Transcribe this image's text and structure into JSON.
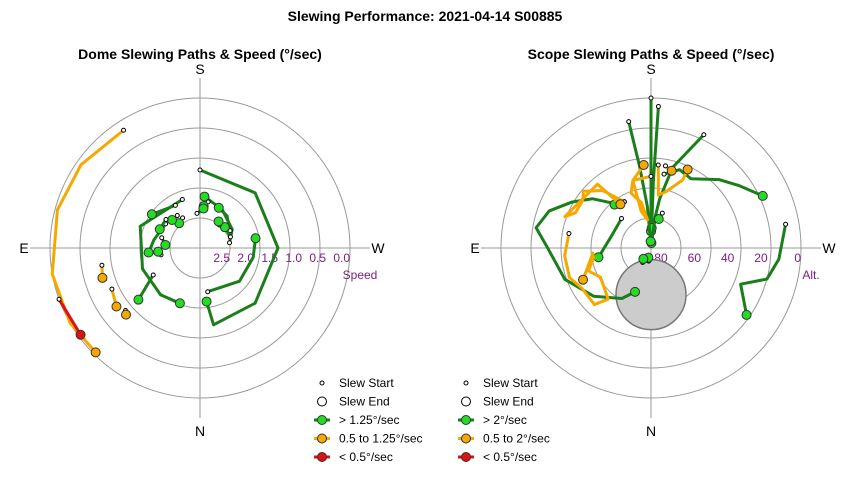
{
  "page_title": "Slewing Performance: 2021-04-14 S00885",
  "colors": {
    "fast": "#1a7f1a",
    "fast_marker": "#22dd22",
    "medium": "#f5a800",
    "medium_marker": "#f5a800",
    "slow": "#dd1111",
    "slow_marker": "#dd1111",
    "grid": "#999999",
    "tick_label": "#7a1f84",
    "blocked_zone": "#cccccc"
  },
  "chart_data": [
    {
      "type": "polar-paths",
      "title": "Dome Slewing Paths & Speed (°/sec)",
      "directions": {
        "top": "S",
        "bottom": "N",
        "left": "E",
        "right": "W"
      },
      "radial_axis": {
        "label": "Speed",
        "ticks": [
          "2.5",
          "2.0",
          "1.5",
          "1.0",
          "0.5",
          "0.0"
        ],
        "values": [
          2.5,
          2.0,
          1.5,
          1.0,
          0.5,
          0.0
        ]
      },
      "grid": true,
      "legend": [
        {
          "kind": "start",
          "label": "Slew Start"
        },
        {
          "kind": "end",
          "label": "Slew End"
        },
        {
          "kind": "fast",
          "label": "> 1.25°/sec"
        },
        {
          "kind": "medium",
          "label": "0.5 to 1.25°/sec"
        },
        {
          "kind": "slow",
          "label": "< 0.5°/sec"
        }
      ],
      "paths": [
        {
          "speed": "fast",
          "pts": [
            [
              0,
              1.5
            ],
            [
              -45,
              1.5
            ],
            [
              -90,
              1.5
            ],
            [
              -135,
              1.5
            ],
            [
              -170,
              1.5
            ],
            [
              -173,
              2.0
            ]
          ]
        },
        {
          "speed": "fast",
          "pts": [
            [
              20,
              2.05
            ],
            [
              70,
              1.8
            ],
            [
              110,
              1.85
            ],
            [
              140,
              1.85
            ],
            [
              160,
              1.9
            ]
          ]
        },
        {
          "speed": "fast",
          "pts": [
            [
              -80,
              2.5
            ],
            [
              -60,
              2.35
            ],
            [
              -30,
              2.2
            ],
            [
              -5,
              2.05
            ]
          ]
        },
        {
          "speed": "fast",
          "pts": [
            [
              -170,
              2.2
            ],
            [
              -130,
              2.05
            ],
            [
              -100,
              2.0
            ],
            [
              -80,
              1.95
            ]
          ]
        },
        {
          "speed": "fast",
          "pts": [
            [
              30,
              2.1
            ],
            [
              55,
              1.9
            ]
          ]
        },
        {
          "speed": "fast",
          "pts": [
            [
              55,
              2.25
            ],
            [
              80,
              2.15
            ],
            [
              95,
              2.05
            ]
          ]
        },
        {
          "speed": "fast",
          "pts": [
            [
              -60,
              2.4
            ],
            [
              -40,
              2.25
            ],
            [
              -25,
              2.2
            ]
          ]
        },
        {
          "speed": "fast",
          "pts": [
            [
              120,
              2.0
            ],
            [
              130,
              1.45
            ]
          ]
        },
        {
          "speed": "fast",
          "pts": [
            [
              -70,
              2.45
            ],
            [
              -50,
              2.45
            ]
          ]
        },
        {
          "speed": "fast",
          "pts": [
            [
              -10,
              2.15
            ],
            [
              -5,
              2.25
            ]
          ]
        },
        {
          "speed": "fast",
          "pts": [
            [
              30,
              2.4
            ],
            [
              40,
              2.45
            ]
          ]
        },
        {
          "speed": "fast",
          "pts": [
            [
              -40,
              2.5
            ],
            [
              -35,
              2.45
            ]
          ]
        },
        {
          "speed": "fast",
          "pts": [
            [
              75,
              2.3
            ],
            [
              85,
              2.4
            ]
          ]
        },
        {
          "speed": "fast",
          "pts": [
            [
              100,
              2.3
            ],
            [
              95,
              2.25
            ]
          ]
        },
        {
          "speed": "fast",
          "pts": [
            [
              35,
              2.3
            ],
            [
              45,
              2.3
            ]
          ]
        },
        {
          "speed": "fast",
          "pts": [
            [
              5,
              2.4
            ],
            [
              -5,
              2.3
            ]
          ]
        },
        {
          "speed": "fast",
          "pts": [
            [
              50,
              2.2
            ],
            [
              65,
              2.2
            ]
          ]
        },
        {
          "speed": "medium",
          "pts": [
            [
              33,
              0.2
            ],
            [
              55,
              0.1
            ],
            [
              75,
              0.05
            ],
            [
              100,
              0.0
            ],
            [
              120,
              0.0
            ],
            [
              135,
              0.05
            ]
          ]
        },
        {
          "speed": "medium",
          "pts": [
            [
              115,
              1.1
            ],
            [
              125,
              1.0
            ]
          ]
        },
        {
          "speed": "medium",
          "pts": [
            [
              100,
              1.05
            ],
            [
              107,
              1.0
            ]
          ]
        },
        {
          "speed": "medium",
          "pts": [
            [
              130,
              1.1
            ],
            [
              132,
              1.05
            ]
          ]
        },
        {
          "speed": "slow",
          "pts": [
            [
              110,
              0.0
            ],
            [
              126,
              0.05
            ]
          ]
        }
      ]
    },
    {
      "type": "polar-paths",
      "title": "Scope Slewing Paths & Speed (°/sec)",
      "directions": {
        "top": "S",
        "bottom": "N",
        "left": "E",
        "right": "W"
      },
      "radial_axis": {
        "label": "Alt.",
        "ticks": [
          "80",
          "60",
          "40",
          "20",
          "0"
        ],
        "values": [
          80,
          60,
          40,
          20,
          0
        ]
      },
      "grid": true,
      "blocked_zone": {
        "az": 180,
        "alt": 62,
        "radius_deg": 21
      },
      "legend": [
        {
          "kind": "start",
          "label": "Slew Start"
        },
        {
          "kind": "end",
          "label": "Slew End"
        },
        {
          "kind": "fast",
          "label": "> 2°/sec"
        },
        {
          "kind": "medium",
          "label": "0.5 to 2°/sec"
        },
        {
          "kind": "slow",
          "label": "< 0.5°/sec"
        }
      ],
      "paths": [
        {
          "speed": "fast",
          "pts": [
            [
              0,
              0
            ],
            [
              0,
              30
            ],
            [
              0,
              60
            ],
            [
              0,
              80
            ]
          ]
        },
        {
          "speed": "fast",
          "pts": [
            [
              -3,
              5
            ],
            [
              -2,
              50
            ],
            [
              -2,
              78
            ]
          ]
        },
        {
          "speed": "fast",
          "pts": [
            [
              -25,
              15
            ],
            [
              -15,
              40
            ],
            [
              -10,
              60
            ],
            [
              -8,
              70
            ],
            [
              -5,
              87
            ]
          ]
        },
        {
          "speed": "fast",
          "pts": [
            [
              10,
              13
            ],
            [
              8,
              40
            ],
            [
              5,
              65
            ],
            [
              3,
              86
            ]
          ]
        },
        {
          "speed": "fast",
          "pts": [
            [
              -10,
              45
            ],
            [
              -20,
              40
            ],
            [
              -30,
              42
            ],
            [
              -45,
              32
            ],
            [
              -55,
              25
            ],
            [
              -65,
              16
            ]
          ]
        },
        {
          "speed": "fast",
          "pts": [
            [
              -80,
              8
            ],
            [
              -95,
              13
            ],
            [
              -105,
              18
            ],
            [
              -112,
              32
            ],
            [
              -125,
              20
            ]
          ]
        },
        {
          "speed": "fast",
          "pts": [
            [
              40,
              55
            ],
            [
              50,
              44
            ],
            [
              60,
              35
            ],
            [
              70,
              25
            ],
            [
              80,
              20
            ],
            [
              90,
              28
            ],
            [
              110,
              35
            ],
            [
              130,
              45
            ],
            [
              150,
              55
            ],
            [
              160,
              62
            ]
          ]
        },
        {
          "speed": "fast",
          "pts": [
            [
              45,
              65
            ],
            [
              75,
              65
            ],
            [
              100,
              58
            ]
          ]
        },
        {
          "speed": "fast",
          "pts": [
            [
              30,
              58
            ],
            [
              40,
              56
            ]
          ]
        },
        {
          "speed": "fast",
          "pts": [
            [
              -18,
              68
            ],
            [
              -15,
              72
            ]
          ]
        },
        {
          "speed": "fast",
          "pts": [
            [
              170,
              82
            ],
            [
              160,
              83
            ],
            [
              165,
              84
            ]
          ]
        },
        {
          "speed": "fast",
          "pts": [
            [
              150,
              80
            ],
            [
              145,
              82
            ]
          ]
        },
        {
          "speed": "medium",
          "pts": [
            [
              0,
              47
            ],
            [
              15,
              48
            ],
            [
              20,
              55
            ],
            [
              12,
              62
            ],
            [
              7,
              73
            ],
            [
              15,
              67
            ],
            [
              15,
              48
            ],
            [
              5,
              40
            ]
          ]
        },
        {
          "speed": "medium",
          "pts": [
            [
              -5,
              40
            ],
            [
              -8,
              58
            ],
            [
              -15,
              55
            ],
            [
              -25,
              45
            ],
            [
              -25,
              38
            ]
          ]
        },
        {
          "speed": "medium",
          "pts": [
            [
              30,
              58
            ],
            [
              40,
              45
            ],
            [
              50,
              37
            ],
            [
              55,
              40
            ],
            [
              65,
              40
            ],
            [
              70,
              35
            ],
            [
              40,
              40
            ],
            [
              35,
              58
            ]
          ]
        },
        {
          "speed": "medium",
          "pts": [
            [
              80,
              40
            ],
            [
              95,
              38
            ],
            [
              110,
              38
            ],
            [
              120,
              42
            ],
            [
              135,
              42
            ],
            [
              140,
              50
            ],
            [
              120,
              55
            ],
            [
              110,
              50
            ],
            [
              100,
              55
            ],
            [
              95,
              55
            ],
            [
              115,
              45
            ]
          ]
        },
        {
          "speed": "medium",
          "pts": [
            [
              -10,
              40
            ],
            [
              -15,
              42
            ]
          ]
        }
      ]
    }
  ]
}
